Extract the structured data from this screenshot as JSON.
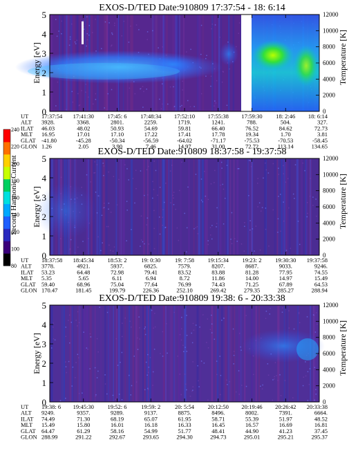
{
  "chart_data": [
    {
      "type": "heatmap",
      "title": "EXOS-D/TED   Date:910809  17:37:54 - 18: 6:14",
      "ylabel": "Energy [eV]",
      "ylim": [
        0,
        5
      ],
      "y_ticks": [
        "0",
        "1",
        "2",
        "3",
        "4",
        "5"
      ],
      "right_ylabel": "Temperature [K]",
      "right_ylim": [
        0,
        12000
      ],
      "right_ticks": [
        "0",
        "2000",
        "4000",
        "6000",
        "8000",
        "10000",
        "12000"
      ],
      "row_labels": [
        "UT",
        "ALT",
        "ILAT",
        "MLT",
        "GLAT",
        "GLON"
      ],
      "columns": [
        [
          "17:37:54",
          "3928.",
          "46.03",
          "16.95",
          "-41.80",
          "1.26"
        ],
        [
          "17:41:30",
          "3368.",
          "48.02",
          "17.01",
          "-45.28",
          "2.05"
        ],
        [
          "17:45: 6",
          "2801.",
          "50.93",
          "17.10",
          "-50.34",
          "3.90"
        ],
        [
          "17:48:34",
          "2259.",
          "54.69",
          "17.22",
          "-56.59",
          "7.46"
        ],
        [
          "17:52:10",
          "1719.",
          "59.81",
          "17.41",
          "-64.02",
          "14.97"
        ],
        [
          "17:55:38",
          "1241.",
          "66.40",
          "17.78",
          "-71.17",
          "31.00"
        ],
        [
          "17:59:30",
          "788.",
          "76.52",
          "19.34",
          "-75.53",
          "72.72"
        ],
        [
          "18: 2:46",
          "504.",
          "84.62",
          "1.70",
          "-70.53",
          "113.14"
        ],
        [
          "18: 6:14",
          "327.",
          "72.73",
          "3.81",
          "-58.45",
          "134.65"
        ]
      ]
    },
    {
      "type": "heatmap",
      "title": "EXOS-D/TED   Date:910809  18:37:58 - 19:37:58",
      "ylabel": "Energy [eV]",
      "ylim": [
        0,
        5
      ],
      "y_ticks": [
        "0",
        "1",
        "2",
        "3",
        "4",
        "5"
      ],
      "right_ylabel": "Temperature [K]",
      "right_ylim": [
        0,
        12000
      ],
      "right_ticks": [
        "0",
        "2000",
        "4000",
        "6000",
        "8000",
        "10000",
        "12000"
      ],
      "row_labels": [
        "UT",
        "ALT",
        "ILAT",
        "MLT",
        "GLAT",
        "GLON"
      ],
      "columns": [
        [
          "18:37:58",
          "3778.",
          "53.23",
          "5.35",
          "59.40",
          "170.47"
        ],
        [
          "18:45:34",
          "4921.",
          "64.48",
          "5.65",
          "68.96",
          "181.45"
        ],
        [
          "18:53: 2",
          "5937.",
          "72.98",
          "6.11",
          "75.04",
          "199.79"
        ],
        [
          "19: 0:30",
          "6825.",
          "79.41",
          "6.94",
          "77.64",
          "226.36"
        ],
        [
          "19: 7:58",
          "7579.",
          "83.52",
          "8.72",
          "76.99",
          "252.10"
        ],
        [
          "19:15:34",
          "8207.",
          "83.88",
          "11.86",
          "74.43",
          "269.42"
        ],
        [
          "19:23: 2",
          "8687.",
          "81.28",
          "14.00",
          "71.25",
          "279.35"
        ],
        [
          "19:30:30",
          "9033.",
          "77.95",
          "14.97",
          "67.89",
          "285.27"
        ],
        [
          "19:37:58",
          "9246.",
          "74.55",
          "15.49",
          "64.53",
          "288.94"
        ]
      ]
    },
    {
      "type": "heatmap",
      "title": "EXOS-D/TED   Date:910809  19:38: 6 - 20:33:38",
      "ylabel": "Energy [eV]",
      "ylim": [
        0,
        5
      ],
      "y_ticks": [
        "0",
        "1",
        "2",
        "3",
        "4",
        "5"
      ],
      "right_ylabel": "Temperature [K]",
      "right_ylim": [
        0,
        12000
      ],
      "right_ticks": [
        "0",
        "2000",
        "4000",
        "6000",
        "8000",
        "10000",
        "12000"
      ],
      "row_labels": [
        "UT",
        "ALT",
        "ILAT",
        "MLT",
        "GLAT",
        "GLON"
      ],
      "columns": [
        [
          "19:38: 6",
          "9249.",
          "74.49",
          "15.49",
          "64.47",
          "288.99"
        ],
        [
          "19:45:30",
          "9357.",
          "71.30",
          "15.80",
          "61.29",
          "291.22"
        ],
        [
          "19:52: 6",
          "9289.",
          "68.19",
          "16.01",
          "58.16",
          "292.67"
        ],
        [
          "19:59: 2",
          "9137.",
          "65.07",
          "16.18",
          "54.99",
          "293.65"
        ],
        [
          "20: 5:54",
          "8875.",
          "61.95",
          "16.33",
          "51.77",
          "294.30"
        ],
        [
          "20:12:50",
          "8496.",
          "58.71",
          "16.45",
          "48.41",
          "294.73"
        ],
        [
          "20:19:46",
          "8002.",
          "55.39",
          "16.57",
          "44.90",
          "295.01"
        ],
        [
          "20:26:42",
          "7391.",
          "51.97",
          "16.69",
          "41.23",
          "295.21"
        ],
        [
          "20:33:38",
          "6664.",
          "48.52",
          "16.81",
          "37.45",
          "295.37"
        ]
      ]
    }
  ],
  "colorbar": {
    "label": "Second Harmonic Current",
    "ticks": [
      "240",
      "220",
      "200",
      "180",
      "160",
      "140",
      "120",
      "100",
      "80"
    ],
    "colors": [
      "#000000",
      "#3a007a",
      "#2a2abf",
      "#1f5fff",
      "#00a8ff",
      "#00e0e0",
      "#00d060",
      "#c8ff00",
      "#ffd000",
      "#ff7000",
      "#ff0000"
    ]
  }
}
